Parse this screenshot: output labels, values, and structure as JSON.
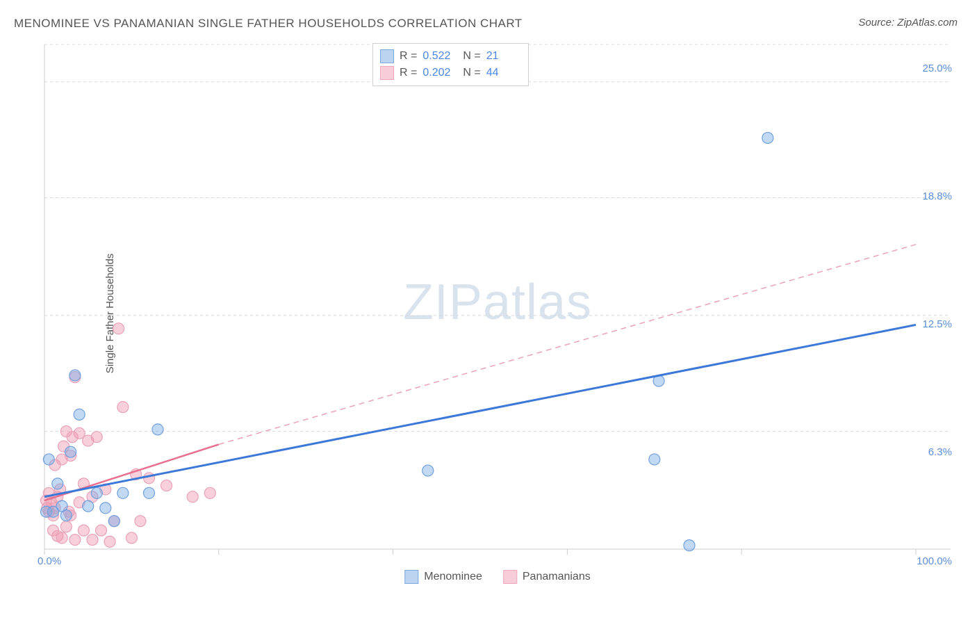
{
  "title": "MENOMINEE VS PANAMANIAN SINGLE FATHER HOUSEHOLDS CORRELATION CHART",
  "source_label": "Source:",
  "source_name": "ZipAtlas.com",
  "ylabel": "Single Father Households",
  "watermark_a": "ZIP",
  "watermark_b": "atlas",
  "chart": {
    "type": "scatter",
    "xlim": [
      0,
      100
    ],
    "ylim": [
      0,
      27
    ],
    "xticks": [
      0,
      20,
      40,
      60,
      80,
      100
    ],
    "xtick_labels_shown": {
      "0": "0.0%",
      "100": "100.0%"
    },
    "yticks": [
      6.3,
      12.5,
      18.8,
      25.0
    ],
    "ytick_labels": [
      "6.3%",
      "12.5%",
      "18.8%",
      "25.0%"
    ],
    "grid_color": "#d8d8d8",
    "axis_color": "#cccccc",
    "background_color": "#ffffff",
    "series": [
      {
        "name": "Menominee",
        "color_fill": "rgba(120,170,230,0.45)",
        "color_stroke": "#6fa0de",
        "swatch_fill": "#bcd4f0",
        "swatch_stroke": "#7aa9de",
        "r_label": "R =",
        "r_value": "0.522",
        "n_label": "N =",
        "n_value": "21",
        "marker_radius": 8,
        "trend": {
          "x1": 0,
          "y1": 2.8,
          "x2": 100,
          "y2": 12.0,
          "dash": false,
          "width": 3,
          "color": "#3b78d8"
        },
        "points": [
          [
            0.2,
            2.0
          ],
          [
            0.5,
            4.8
          ],
          [
            1.0,
            2.0
          ],
          [
            1.5,
            3.5
          ],
          [
            2.0,
            2.3
          ],
          [
            2.5,
            1.8
          ],
          [
            3.0,
            5.2
          ],
          [
            3.5,
            9.3
          ],
          [
            4.0,
            7.2
          ],
          [
            5.0,
            2.3
          ],
          [
            6.0,
            3.0
          ],
          [
            7.0,
            2.2
          ],
          [
            8.0,
            1.5
          ],
          [
            9.0,
            3.0
          ],
          [
            12.0,
            3.0
          ],
          [
            13.0,
            6.4
          ],
          [
            44.0,
            4.2
          ],
          [
            70.0,
            4.8
          ],
          [
            70.5,
            9.0
          ],
          [
            74.0,
            0.2
          ],
          [
            83.0,
            22.0
          ]
        ]
      },
      {
        "name": "Panamanians",
        "color_fill": "rgba(240,150,175,0.45)",
        "color_stroke": "#e9a2b7",
        "swatch_fill": "#f6cdd9",
        "swatch_stroke": "#eea8bc",
        "r_label": "R =",
        "r_value": "0.202",
        "n_label": "N =",
        "n_value": "44",
        "marker_radius": 8,
        "trend_solid": {
          "x1": 0,
          "y1": 2.6,
          "x2": 20,
          "y2": 5.6,
          "dash": false,
          "width": 2.5,
          "color": "#e86f8f"
        },
        "trend": {
          "x1": 20,
          "y1": 5.6,
          "x2": 100,
          "y2": 16.3,
          "dash": true,
          "width": 1.5,
          "color": "#e9a2b7"
        },
        "points": [
          [
            0.2,
            2.6
          ],
          [
            0.3,
            2.2
          ],
          [
            0.5,
            2.0
          ],
          [
            0.5,
            3.0
          ],
          [
            0.8,
            2.5
          ],
          [
            1.0,
            1.0
          ],
          [
            1.0,
            1.8
          ],
          [
            1.2,
            2.2
          ],
          [
            1.2,
            4.5
          ],
          [
            1.5,
            0.7
          ],
          [
            1.5,
            2.8
          ],
          [
            1.8,
            3.2
          ],
          [
            2.0,
            0.6
          ],
          [
            2.0,
            4.8
          ],
          [
            2.2,
            5.5
          ],
          [
            2.5,
            1.2
          ],
          [
            2.5,
            6.3
          ],
          [
            2.8,
            2.0
          ],
          [
            3.0,
            1.8
          ],
          [
            3.0,
            5.0
          ],
          [
            3.2,
            6.0
          ],
          [
            3.5,
            0.5
          ],
          [
            3.5,
            9.2
          ],
          [
            4.0,
            2.5
          ],
          [
            4.0,
            6.2
          ],
          [
            4.5,
            1.0
          ],
          [
            4.5,
            3.5
          ],
          [
            5.0,
            5.8
          ],
          [
            5.5,
            0.5
          ],
          [
            5.5,
            2.8
          ],
          [
            6.0,
            6.0
          ],
          [
            6.5,
            1.0
          ],
          [
            7.0,
            3.2
          ],
          [
            7.5,
            0.4
          ],
          [
            8.0,
            1.5
          ],
          [
            8.5,
            11.8
          ],
          [
            9.0,
            7.6
          ],
          [
            10.0,
            0.6
          ],
          [
            10.5,
            4.0
          ],
          [
            11.0,
            1.5
          ],
          [
            12.0,
            3.8
          ],
          [
            14.0,
            3.4
          ],
          [
            17.0,
            2.8
          ],
          [
            19.0,
            3.0
          ]
        ]
      }
    ]
  },
  "bottom_legend": [
    {
      "label": "Menominee"
    },
    {
      "label": "Panamanians"
    }
  ]
}
